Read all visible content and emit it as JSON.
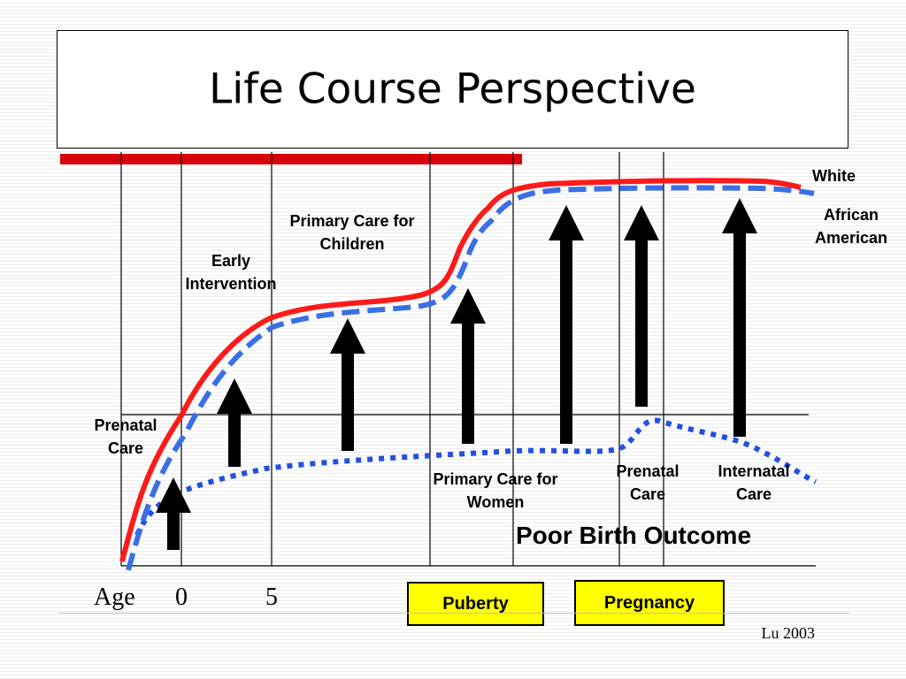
{
  "title": "Life Course Perspective",
  "colors": {
    "white_curve": "#ff1a1a",
    "african_american_curve": "#3a6fe6",
    "poor_outcome_curve": "#2250e0",
    "accent_bar": "#d9000c",
    "stage_box_fill": "#ffff00"
  },
  "legend": {
    "white": "White",
    "african_american": "African American"
  },
  "interventions": {
    "prenatal_care": "Prenatal Care",
    "early_intervention": "Early Intervention",
    "primary_care_children": "Primary Care for Children",
    "primary_care_women": "Primary Care for Women",
    "prenatal_care_2": "Prenatal Care",
    "internatal_care": "Internatal Care"
  },
  "outcome_label": "Poor Birth Outcome",
  "axis": {
    "label": "Age",
    "ticks": [
      "0",
      "5"
    ]
  },
  "stages": {
    "puberty": "Puberty",
    "pregnancy": "Pregnancy"
  },
  "citation": "Lu 2003"
}
